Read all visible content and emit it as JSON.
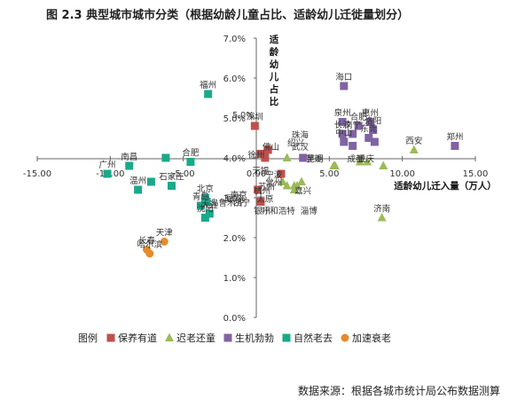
{
  "figure_title": "图 2.3   典型城市城市分类（根据幼龄儿童占比、适龄幼儿迁徙量划分）",
  "source_note": "数据来源：根据各城市统计局公布数据测算",
  "chart_data": {
    "type": "scatter",
    "title": "图 2.3   典型城市城市分类（根据幼龄儿童占比、适龄幼儿迁徙量划分）",
    "xlabel": "适龄幼儿迁入量（万人）",
    "ylabel": "适龄幼儿占比",
    "xlim": [
      -15,
      15
    ],
    "ylim": [
      0,
      7
    ],
    "x_ticks": [
      "-15.00",
      "-10.00",
      "-5.00",
      "0.00",
      "5.00",
      "10.00",
      "15.00"
    ],
    "y_ticks": [
      "0.0%",
      "1.0%",
      "2.0%",
      "3.0%",
      "4.0%",
      "5.0%",
      "6.0%",
      "7.0%"
    ],
    "legend_title": "图例",
    "legend_position": "bottom-left",
    "grid": false,
    "series": [
      {
        "name": "保养有道",
        "color": "#c0504d",
        "marker": "square",
        "points": [
          {
            "label": "深圳",
            "x": -0.1,
            "y": 4.8
          },
          {
            "label": "",
            "x": 0.3,
            "y": 4.1
          },
          {
            "label": "",
            "x": 0.8,
            "y": 4.2
          },
          {
            "label": "",
            "x": 0.6,
            "y": 4.0
          },
          {
            "label": "",
            "x": 1.7,
            "y": 3.6
          },
          {
            "label": "",
            "x": 0.1,
            "y": 3.2
          },
          {
            "label": "",
            "x": 0.3,
            "y": 2.9
          }
        ]
      },
      {
        "name": "迟老还童",
        "color": "#9bbb59",
        "marker": "triangle",
        "points": [
          {
            "label": "",
            "x": 2.1,
            "y": 4.0
          },
          {
            "label": "",
            "x": 1.8,
            "y": 3.4
          },
          {
            "label": "",
            "x": 2.1,
            "y": 3.3
          },
          {
            "label": "",
            "x": 2.6,
            "y": 3.3
          },
          {
            "label": "",
            "x": 2.8,
            "y": 3.3
          },
          {
            "label": "",
            "x": 2.6,
            "y": 3.2
          },
          {
            "label": "",
            "x": 3.1,
            "y": 3.4
          },
          {
            "label": "",
            "x": 5.3,
            "y": 3.8
          },
          {
            "label": "",
            "x": 5.4,
            "y": 3.8
          },
          {
            "label": "",
            "x": 7.1,
            "y": 3.9
          },
          {
            "label": "",
            "x": 7.6,
            "y": 3.9
          },
          {
            "label": "",
            "x": 8.7,
            "y": 3.8
          },
          {
            "label": "西安",
            "x": 10.8,
            "y": 4.2
          },
          {
            "label": "济南",
            "x": 8.6,
            "y": 2.5
          }
        ]
      },
      {
        "name": "生机勃勃",
        "color": "#8064a2",
        "marker": "square",
        "points": [
          {
            "label": "海口",
            "x": 6.0,
            "y": 5.8
          },
          {
            "label": "泉州",
            "x": 5.9,
            "y": 4.9
          },
          {
            "label": "惠州",
            "x": 7.8,
            "y": 4.9
          },
          {
            "label": "长沙",
            "x": 5.9,
            "y": 4.6
          },
          {
            "label": "合肥",
            "x": 7.0,
            "y": 4.8
          },
          {
            "label": "南宁",
            "x": 6.6,
            "y": 4.6
          },
          {
            "label": "洛阳",
            "x": 8.0,
            "y": 4.7
          },
          {
            "label": "中山",
            "x": 6.0,
            "y": 4.4
          },
          {
            "label": "东莞",
            "x": 7.7,
            "y": 4.5
          },
          {
            "label": "",
            "x": 8.1,
            "y": 4.4
          },
          {
            "label": "",
            "x": 6.6,
            "y": 4.3
          },
          {
            "label": "郑州",
            "x": 13.6,
            "y": 4.3
          },
          {
            "label": "",
            "x": 3.2,
            "y": 4.0
          }
        ]
      },
      {
        "name": "自然老去",
        "color": "#1aa98a",
        "marker": "square",
        "points": [
          {
            "label": "福州",
            "x": -3.3,
            "y": 5.6
          },
          {
            "label": "合肥",
            "x": -4.5,
            "y": 3.9
          },
          {
            "label": "南昌",
            "x": -8.7,
            "y": 3.8
          },
          {
            "label": "广州",
            "x": -10.2,
            "y": 3.6
          },
          {
            "label": "温州",
            "x": -8.1,
            "y": 3.2
          },
          {
            "label": "石家庄",
            "x": -5.8,
            "y": 3.3
          },
          {
            "label": "",
            "x": -7.2,
            "y": 3.4
          },
          {
            "label": "",
            "x": -6.2,
            "y": 4.0
          },
          {
            "label": "北京",
            "x": -3.5,
            "y": 3.0
          },
          {
            "label": "青岛",
            "x": -3.8,
            "y": 2.8
          },
          {
            "label": "",
            "x": -3.4,
            "y": 2.9
          },
          {
            "label": "大连",
            "x": -3.2,
            "y": 2.6
          },
          {
            "label": "沈阳",
            "x": -3.5,
            "y": 2.5
          }
        ]
      },
      {
        "name": "加速衰老",
        "color": "#e78a2c",
        "marker": "circle",
        "points": [
          {
            "label": "天津",
            "x": -6.3,
            "y": 1.9
          },
          {
            "label": "长春",
            "x": -7.5,
            "y": 1.7
          },
          {
            "label": "哈尔滨",
            "x": -7.3,
            "y": 1.6
          }
        ]
      }
    ],
    "extra_labels": [
      {
        "text": "徐州",
        "x": 0.0,
        "y": 4.0
      },
      {
        "text": "佛山",
        "x": 1.0,
        "y": 4.2
      },
      {
        "text": "宁波",
        "x": 1.2,
        "y": 3.5
      },
      {
        "text": "无锡",
        "x": 0.3,
        "y": 3.6
      },
      {
        "text": "常州",
        "x": 1.2,
        "y": 3.3
      },
      {
        "text": "苏州",
        "x": 0.7,
        "y": 3.2
      },
      {
        "text": "杭州",
        "x": 0.4,
        "y": 3.1
      },
      {
        "text": "厦门",
        "x": -1.6,
        "y": 2.9
      },
      {
        "text": "南京",
        "x": -1.2,
        "y": 3.0
      },
      {
        "text": "西宁",
        "x": -1.0,
        "y": 2.8
      },
      {
        "text": "太原",
        "x": 0.6,
        "y": 2.9
      },
      {
        "text": "乌鲁木齐",
        "x": -2.0,
        "y": 2.8
      },
      {
        "text": "银川",
        "x": 0.4,
        "y": 2.6
      },
      {
        "text": "呼和浩特",
        "x": 1.5,
        "y": 2.6
      },
      {
        "text": "嘉兴",
        "x": 3.2,
        "y": 3.1
      },
      {
        "text": "淄博",
        "x": 3.6,
        "y": 2.6
      },
      {
        "text": "芜湖",
        "x": 4.0,
        "y": 3.9
      },
      {
        "text": "成都",
        "x": 6.8,
        "y": 3.9
      },
      {
        "text": "重庆",
        "x": 7.5,
        "y": 3.9
      },
      {
        "text": "武汉",
        "x": 3.0,
        "y": 4.2
      },
      {
        "text": "珠海",
        "x": 3.0,
        "y": 4.5
      },
      {
        "text": "昆明",
        "x": 4.0,
        "y": 3.9
      },
      {
        "text": "5.0%",
        "x": -0.9,
        "y": 5.0
      },
      {
        "text": "绍兴",
        "x": 2.7,
        "y": 4.3
      }
    ]
  }
}
